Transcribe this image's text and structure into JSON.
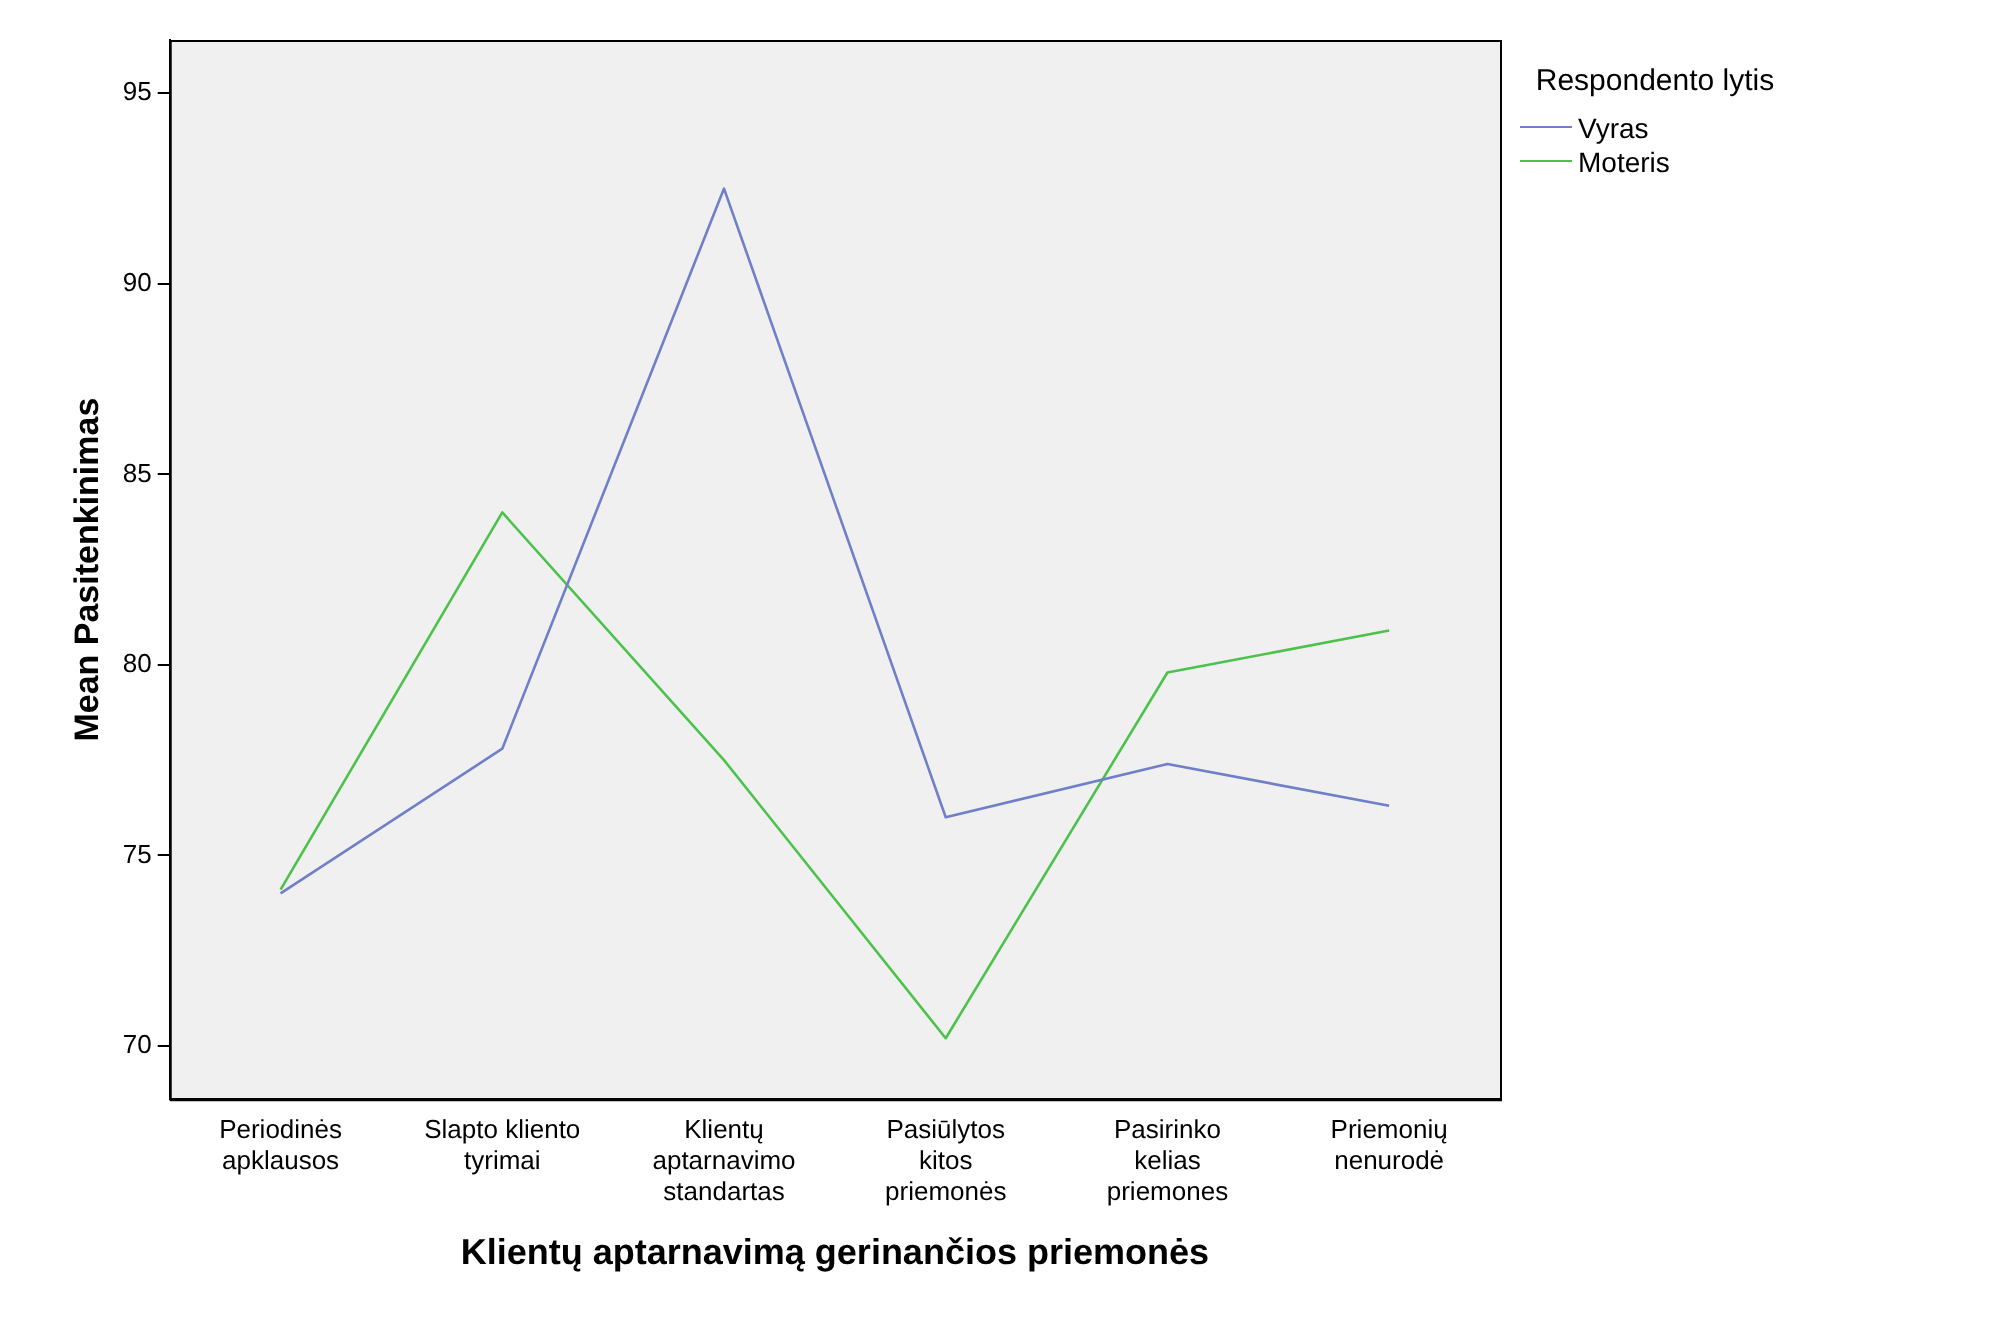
{
  "chart_data": {
    "type": "line",
    "xlabel": "Klientų aptarnavimą gerinančios priemonės",
    "ylabel": "Mean Pasitenkinimas",
    "legend_title": "Respondento lytis",
    "categories": [
      "Periodinės apklausos",
      "Slapto kliento tyrimai",
      "Klientų aptarnavimo standartas",
      "Pasiūlytos kitos priemonės",
      "Pasirinko kelias priemones",
      "Priemonių nenurodė"
    ],
    "series": [
      {
        "name": "Vyras",
        "color": "#6f7fc8",
        "values": [
          74.0,
          77.8,
          92.5,
          76.0,
          77.4,
          76.3
        ]
      },
      {
        "name": "Moteris",
        "color": "#4cc24c",
        "values": [
          74.1,
          84.0,
          77.5,
          70.2,
          79.8,
          80.9
        ]
      }
    ],
    "ylim": [
      68.6,
      96.4
    ],
    "yticks": [
      70,
      75,
      80,
      85,
      90,
      95
    ],
    "grid": false,
    "legend": "top right",
    "marker": "none",
    "line_style": "solid"
  }
}
